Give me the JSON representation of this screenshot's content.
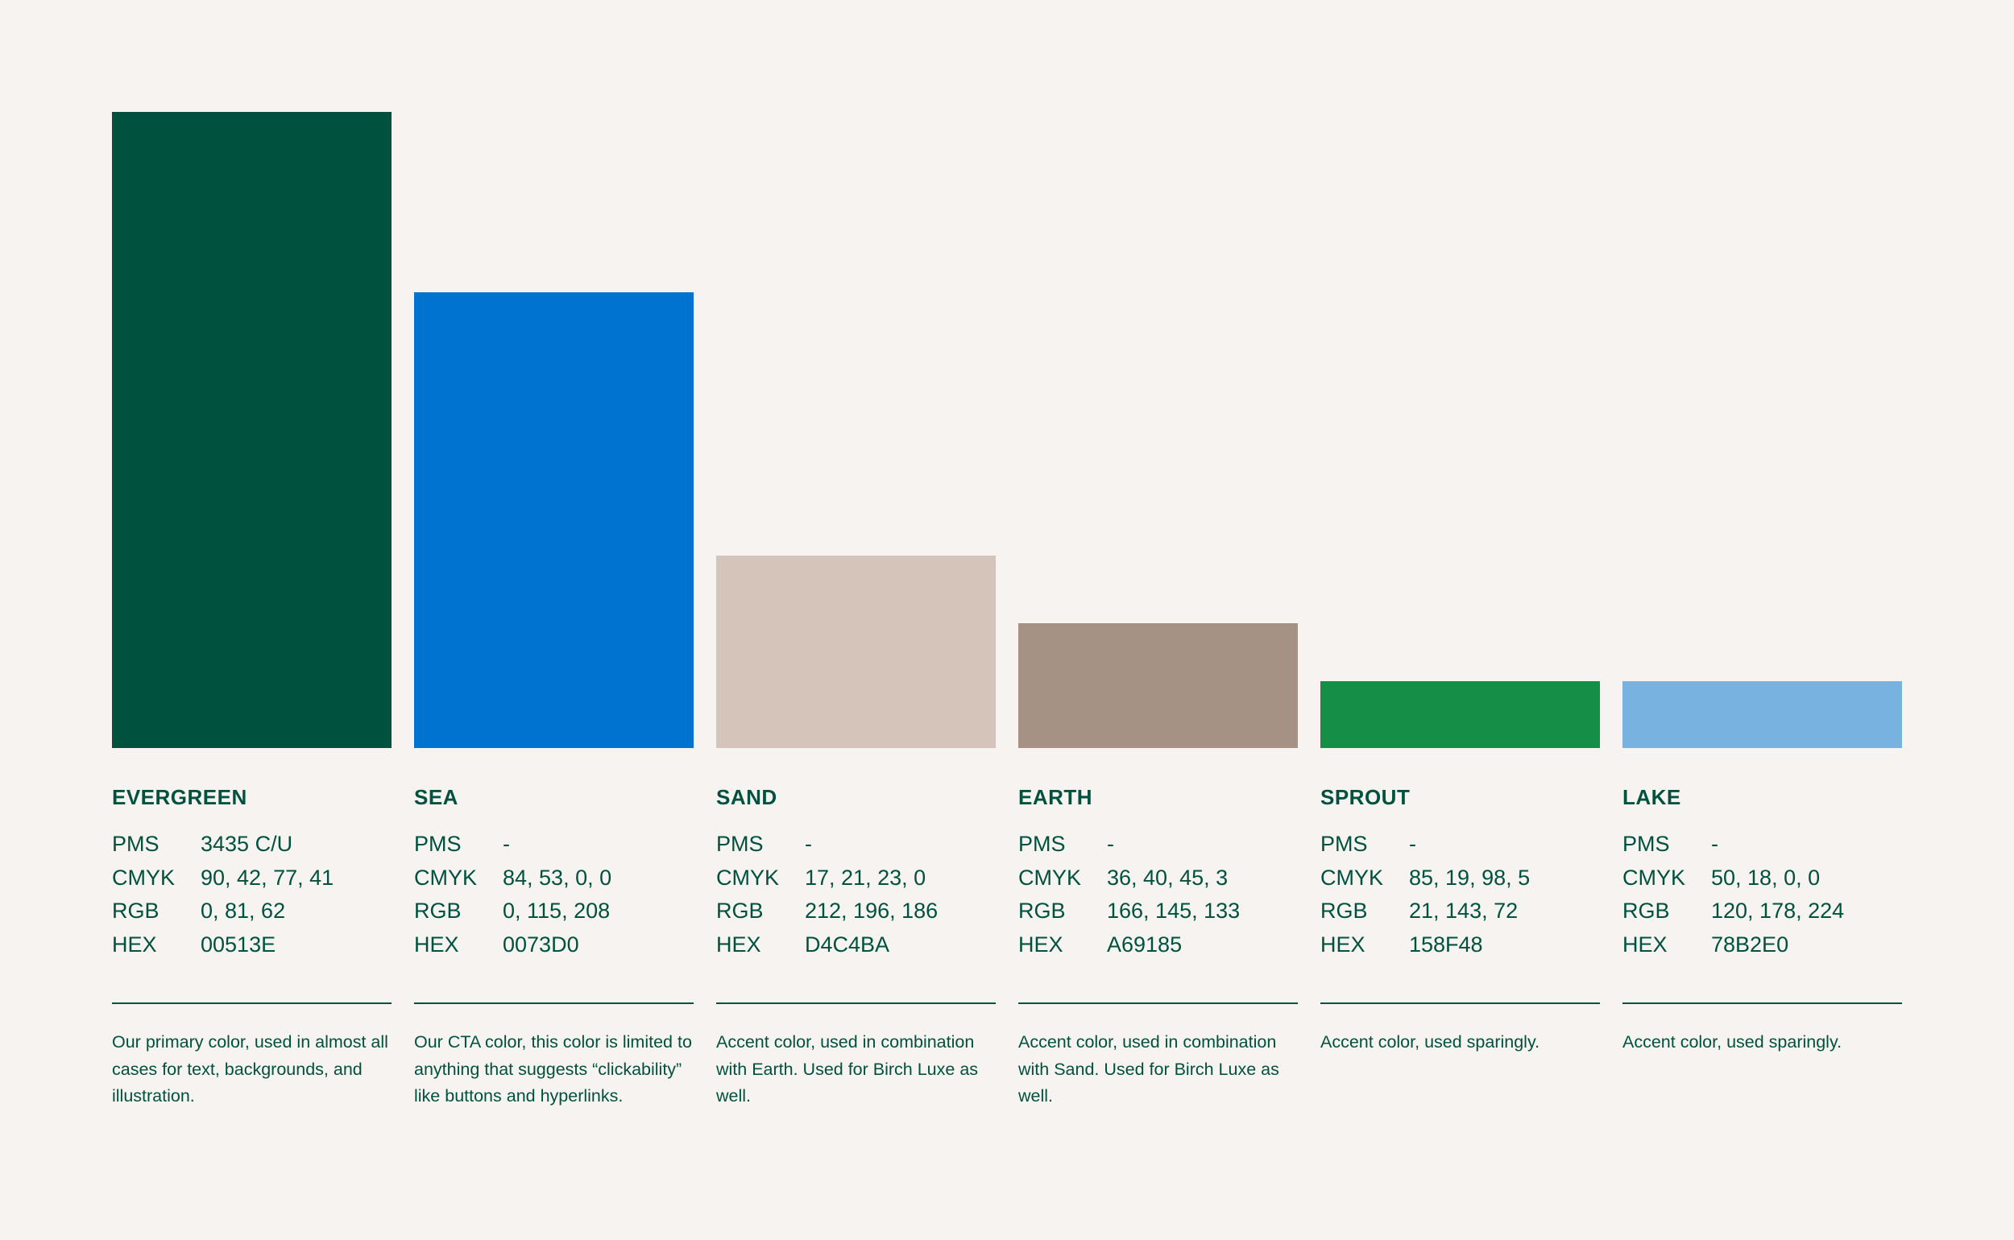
{
  "palette": [
    {
      "name": "EVERGREEN",
      "color": "#00513E",
      "relative_height": 1.0,
      "pms": "3435 C/U",
      "cmyk": "90, 42, 77, 41",
      "rgb": "0, 81, 62",
      "hex": "00513E",
      "description": "Our primary color, used in almost all cases for text, backgrounds, and illustration."
    },
    {
      "name": "SEA",
      "color": "#0073D0",
      "relative_height": 0.717,
      "pms": "-",
      "cmyk": "84, 53, 0, 0",
      "rgb": "0, 115, 208",
      "hex": "0073D0",
      "description": "Our CTA color, this color is limited to anything that suggests “clickability” like buttons and hyperlinks."
    },
    {
      "name": "SAND",
      "color": "#D4C4BA",
      "relative_height": 0.303,
      "pms": "-",
      "cmyk": "17, 21, 23, 0",
      "rgb": "212, 196, 186",
      "hex": "D4C4BA",
      "description": "Accent color, used in combination with Earth. Used for Birch Luxe as well."
    },
    {
      "name": "EARTH",
      "color": "#A69185",
      "relative_height": 0.196,
      "pms": "-",
      "cmyk": "36, 40, 45, 3",
      "rgb": "166, 145, 133",
      "hex": "A69185",
      "description": "Accent color, used in combination with Sand. Used for Birch Luxe as well."
    },
    {
      "name": "SPROUT",
      "color": "#158F48",
      "relative_height": 0.105,
      "pms": "-",
      "cmyk": "85, 19, 98, 5",
      "rgb": "21, 143, 72",
      "hex": "158F48",
      "description": "Accent color, used sparingly."
    },
    {
      "name": "LAKE",
      "color": "#78B2E0",
      "relative_height": 0.105,
      "pms": "-",
      "cmyk": "50, 18, 0, 0",
      "rgb": "120, 178, 224",
      "hex": "78B2E0",
      "description": "Accent color, used sparingly."
    }
  ],
  "labels": {
    "pms": "PMS",
    "cmyk": "CMYK",
    "rgb": "RGB",
    "hex": "HEX"
  },
  "text_color": "#00513E",
  "background_color": "#F6F3F0"
}
